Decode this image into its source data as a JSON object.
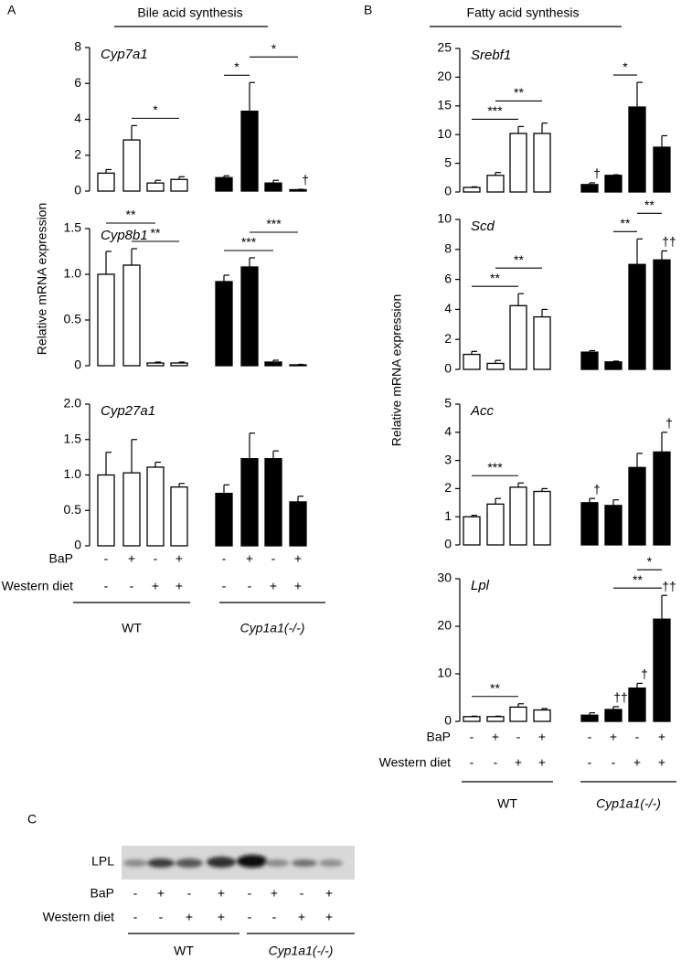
{
  "figure": {
    "panel_labels": [
      "A",
      "B",
      "C"
    ],
    "headers": [
      "Bile acid synthesis",
      "Fatty acid synthesis"
    ],
    "y_axis_labels": [
      "Relative mRNA expression",
      "Relative mRNA expression"
    ],
    "treatment_tables": [
      {
        "rows": [
          {
            "label": "BaP",
            "values": [
              "-",
              "+",
              "-",
              "+",
              "-",
              "+",
              "-",
              "+"
            ]
          },
          {
            "label": "Western diet",
            "values": [
              "-",
              "-",
              "+",
              "+",
              "-",
              "-",
              "+",
              "+"
            ]
          }
        ],
        "groups": [
          "WT",
          "Cyp1a1(-/-)"
        ]
      },
      {
        "rows": [
          {
            "label": "BaP",
            "values": [
              "-",
              "+",
              "-",
              "+",
              "-",
              "+",
              "-",
              "+"
            ]
          },
          {
            "label": "Western diet",
            "values": [
              "-",
              "-",
              "+",
              "+",
              "-",
              "-",
              "+",
              "+"
            ]
          }
        ],
        "groups": [
          "WT",
          "Cyp1a1(-/-)"
        ]
      },
      {
        "rows": [
          {
            "label": "BaP",
            "values": [
              "-",
              "+",
              "-",
              "+",
              "-",
              "+",
              "-",
              "+"
            ]
          },
          {
            "label": "Western diet",
            "values": [
              "-",
              "-",
              "+",
              "+",
              "-",
              "-",
              "+",
              "+"
            ]
          }
        ],
        "groups": [
          "WT",
          "Cyp1a1(-/-)"
        ]
      }
    ],
    "blot_label": "LPL"
  },
  "chart_data": [
    {
      "type": "bar",
      "title": "Cyp7a1",
      "categories": [
        null,
        null,
        null,
        null,
        null,
        null,
        null,
        null
      ],
      "values": [
        1.0,
        2.85,
        0.45,
        0.65,
        0.75,
        4.45,
        0.45,
        0.08
      ],
      "errors": [
        0.2,
        0.8,
        0.15,
        0.15,
        0.1,
        1.6,
        0.15,
        0.02
      ],
      "colors": [
        "#ffffff",
        "#ffffff",
        "#ffffff",
        "#ffffff",
        "#000000",
        "#000000",
        "#000000",
        "#000000"
      ],
      "ylim": [
        0,
        8
      ],
      "yticks": [
        0,
        2,
        4,
        6,
        8
      ],
      "annotations": [
        {
          "text": "*",
          "bars": [
            1,
            3
          ]
        },
        {
          "text": "*",
          "bars": [
            4,
            5
          ]
        },
        {
          "text": "*",
          "bars": [
            5,
            7
          ]
        },
        {
          "text": "†",
          "bars": [
            7
          ]
        }
      ]
    },
    {
      "type": "bar",
      "title": "Cyp8b1",
      "categories": [
        null,
        null,
        null,
        null,
        null,
        null,
        null,
        null
      ],
      "values": [
        1.0,
        1.1,
        0.03,
        0.03,
        0.92,
        1.08,
        0.04,
        0.01
      ],
      "errors": [
        0.25,
        0.18,
        0.01,
        0.01,
        0.07,
        0.1,
        0.02,
        0.005
      ],
      "colors": [
        "#ffffff",
        "#ffffff",
        "#ffffff",
        "#ffffff",
        "#000000",
        "#000000",
        "#000000",
        "#000000"
      ],
      "ylim": [
        0,
        1.5
      ],
      "yticks": [
        0,
        0.5,
        {
          "value": 1,
          "label": "1.0"
        },
        1.5
      ],
      "annotations": [
        {
          "text": "**",
          "bars": [
            1,
            3
          ]
        },
        {
          "text": "**",
          "bars": [
            0,
            2
          ]
        },
        {
          "text": "***",
          "bars": [
            4,
            6
          ]
        },
        {
          "text": "***",
          "bars": [
            5,
            7
          ]
        }
      ]
    },
    {
      "type": "bar",
      "title": "Cyp27a1",
      "categories": [
        null,
        null,
        null,
        null,
        null,
        null,
        null,
        null
      ],
      "values": [
        1.0,
        1.03,
        1.11,
        0.83,
        0.74,
        1.23,
        1.23,
        0.62
      ],
      "errors": [
        0.32,
        0.47,
        0.07,
        0.05,
        0.12,
        0.36,
        0.11,
        0.08
      ],
      "colors": [
        "#ffffff",
        "#ffffff",
        "#ffffff",
        "#ffffff",
        "#000000",
        "#000000",
        "#000000",
        "#000000"
      ],
      "ylim": [
        0,
        2
      ],
      "yticks": [
        0,
        0.5,
        {
          "value": 1,
          "label": "1.0"
        },
        1.5,
        {
          "value": 2,
          "label": "2.0"
        }
      ],
      "annotations": []
    },
    {
      "type": "bar",
      "title": "Srebf1",
      "categories": [
        null,
        null,
        null,
        null,
        null,
        null,
        null,
        null
      ],
      "values": [
        0.8,
        2.9,
        10.2,
        10.2,
        1.3,
        2.9,
        14.8,
        7.8
      ],
      "errors": [
        0.1,
        0.5,
        1.2,
        1.8,
        0.3,
        0.1,
        4.3,
        2.0
      ],
      "colors": [
        "#ffffff",
        "#ffffff",
        "#ffffff",
        "#ffffff",
        "#000000",
        "#000000",
        "#000000",
        "#000000"
      ],
      "ylim": [
        0,
        25
      ],
      "yticks": [
        0,
        5,
        10,
        15,
        20,
        25
      ],
      "annotations": [
        {
          "text": "***",
          "bars": [
            0,
            2
          ]
        },
        {
          "text": "**",
          "bars": [
            1,
            3
          ]
        },
        {
          "text": "*",
          "bars": [
            5,
            6
          ]
        },
        {
          "text": "†",
          "bars": [
            4
          ]
        }
      ]
    },
    {
      "type": "bar",
      "title": "Scd",
      "categories": [
        null,
        null,
        null,
        null,
        null,
        null,
        null,
        null
      ],
      "values": [
        1.0,
        0.4,
        4.25,
        3.5,
        1.15,
        0.5,
        7.0,
        7.3
      ],
      "errors": [
        0.2,
        0.2,
        0.8,
        0.5,
        0.1,
        0.05,
        1.7,
        0.6
      ],
      "colors": [
        "#ffffff",
        "#ffffff",
        "#ffffff",
        "#ffffff",
        "#000000",
        "#000000",
        "#000000",
        "#000000"
      ],
      "ylim": [
        0,
        10
      ],
      "yticks": [
        0,
        2,
        4,
        6,
        8,
        10
      ],
      "annotations": [
        {
          "text": "**",
          "bars": [
            0,
            2
          ]
        },
        {
          "text": "**",
          "bars": [
            1,
            3
          ]
        },
        {
          "text": "**",
          "bars": [
            5,
            6
          ]
        },
        {
          "text": "**",
          "bars": [
            6,
            7
          ]
        },
        {
          "text": "††",
          "bars": [
            7
          ]
        }
      ]
    },
    {
      "type": "bar",
      "title": "Acc",
      "categories": [
        null,
        null,
        null,
        null,
        null,
        null,
        null,
        null
      ],
      "values": [
        1.0,
        1.45,
        2.05,
        1.9,
        1.5,
        1.4,
        2.75,
        3.3
      ],
      "errors": [
        0.05,
        0.2,
        0.15,
        0.1,
        0.15,
        0.2,
        0.5,
        0.7
      ],
      "colors": [
        "#ffffff",
        "#ffffff",
        "#ffffff",
        "#ffffff",
        "#000000",
        "#000000",
        "#000000",
        "#000000"
      ],
      "ylim": [
        0,
        5
      ],
      "yticks": [
        0,
        1,
        2,
        3,
        4,
        5
      ],
      "annotations": [
        {
          "text": "***",
          "bars": [
            0,
            2
          ]
        },
        {
          "text": "†",
          "bars": [
            4
          ]
        },
        {
          "text": "†",
          "bars": [
            7
          ]
        }
      ]
    },
    {
      "type": "bar",
      "title": "Lpl",
      "categories": [
        null,
        null,
        null,
        null,
        null,
        null,
        null,
        null
      ],
      "values": [
        1.0,
        1.0,
        3.0,
        2.4,
        1.3,
        2.5,
        7.0,
        21.5
      ],
      "errors": [
        0.1,
        0.1,
        0.7,
        0.3,
        0.5,
        0.6,
        1.0,
        5.0
      ],
      "colors": [
        "#ffffff",
        "#ffffff",
        "#ffffff",
        "#ffffff",
        "#000000",
        "#000000",
        "#000000",
        "#000000"
      ],
      "ylim": [
        0,
        30
      ],
      "yticks": [
        0,
        10,
        20,
        30
      ],
      "annotations": [
        {
          "text": "**",
          "bars": [
            0,
            2
          ]
        },
        {
          "text": "**",
          "bars": [
            5,
            7
          ]
        },
        {
          "text": "*",
          "bars": [
            6,
            7
          ]
        },
        {
          "text": "††",
          "bars": [
            5
          ]
        },
        {
          "text": "†",
          "bars": [
            6
          ]
        },
        {
          "text": "††",
          "bars": [
            7
          ]
        }
      ]
    }
  ]
}
